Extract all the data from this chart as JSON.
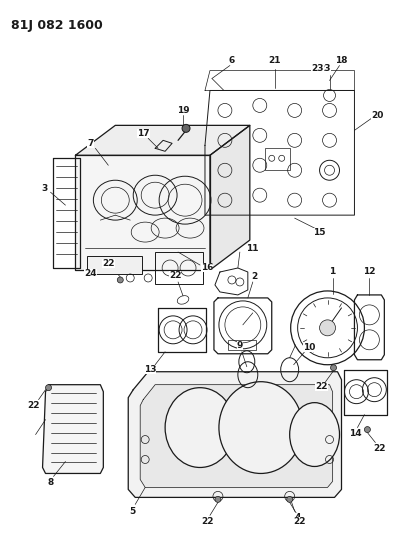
{
  "title": "81J 082 1600",
  "bg_color": "#ffffff",
  "line_color": "#1a1a1a",
  "figsize": [
    3.96,
    5.33
  ],
  "dpi": 100,
  "title_fontsize": 9,
  "label_fontsize": 6.5,
  "lw_main": 0.9,
  "lw_thin": 0.5,
  "lw_med": 0.7
}
